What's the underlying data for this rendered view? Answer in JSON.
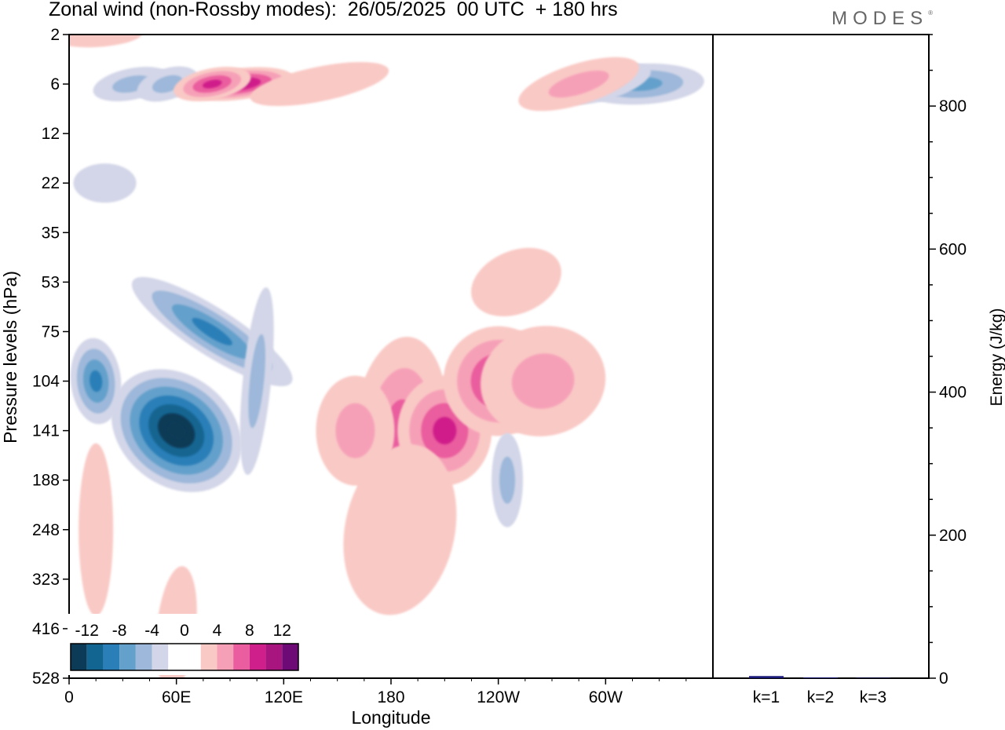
{
  "title": "Zonal wind (non-Rossby modes):  26/05/2025  00 UTC  + 180 hrs",
  "logo": "MODES",
  "colors": {
    "neg": [
      "#0c3b57",
      "#126591",
      "#2a7fb8",
      "#63a0cb",
      "#9db8da",
      "#d3d6e8"
    ],
    "pos": [
      "#f9c9c5",
      "#f6a0b7",
      "#ea5d9e",
      "#cf1f8a",
      "#a8157f",
      "#6e0a76"
    ],
    "bar": "#1a1a7a"
  },
  "chart_data": [
    {
      "type": "heatmap",
      "title": "Zonal wind (non-Rossby modes):  26/05/2025  00 UTC  + 180 hrs",
      "xlabel": "Longitude",
      "ylabel": "Pressure levels (hPa)",
      "x_ticks": [
        "0",
        "60E",
        "120E",
        "180",
        "120W",
        "60W"
      ],
      "y_ticks": [
        "2",
        "6",
        "12",
        "22",
        "35",
        "53",
        "75",
        "104",
        "141",
        "188",
        "248",
        "323",
        "416",
        "528"
      ],
      "colorbar_labels": [
        "-12",
        "-8",
        "-4",
        "0",
        "4",
        "8",
        "12"
      ],
      "levels": [
        -14,
        -12,
        -10,
        -8,
        -6,
        -4,
        -2,
        0,
        2,
        4,
        6,
        8,
        10,
        12,
        14
      ],
      "features": [
        {
          "lon": 60,
          "level": "141",
          "value": -14
        },
        {
          "lon": 15,
          "level": "104",
          "value": -8
        },
        {
          "lon": 80,
          "level": "75",
          "value": -8
        },
        {
          "lon": 105,
          "level": "104",
          "value": -5
        },
        {
          "lon": 35,
          "level": "6",
          "value": -5
        },
        {
          "lon": 55,
          "level": "6",
          "value": -4
        },
        {
          "lon": 320,
          "level": "6",
          "value": -6
        },
        {
          "lon": 300,
          "level": "6",
          "value": -4
        },
        {
          "lon": 95,
          "level": "6",
          "value": 10
        },
        {
          "lon": 80,
          "level": "6",
          "value": 8
        },
        {
          "lon": 140,
          "level": "6",
          "value": 3
        },
        {
          "lon": 285,
          "level": "6",
          "value": 4
        },
        {
          "lon": 15,
          "level": "2",
          "value": 3
        },
        {
          "lon": 185,
          "level": "141",
          "value": 7
        },
        {
          "lon": 210,
          "level": "141",
          "value": 8
        },
        {
          "lon": 240,
          "level": "104",
          "value": 8
        },
        {
          "lon": 265,
          "level": "104",
          "value": 5
        },
        {
          "lon": 160,
          "level": "141",
          "value": 4
        },
        {
          "lon": 185,
          "level": "248",
          "value": 3
        },
        {
          "lon": 245,
          "level": "188",
          "value": -4
        },
        {
          "lon": 15,
          "level": "248",
          "value": 2
        },
        {
          "lon": 60,
          "level": "416",
          "value": 2
        },
        {
          "lon": 250,
          "level": "53",
          "value": 3
        },
        {
          "lon": 20,
          "level": "22",
          "value": -2
        }
      ]
    },
    {
      "type": "bar",
      "categories": [
        "k=1",
        "k=2",
        "k=3"
      ],
      "values": [
        3,
        1,
        0.5
      ],
      "ylabel": "Energy (J/kg)",
      "ylim": [
        0,
        900
      ],
      "y_ticks": [
        0,
        200,
        400,
        600,
        800
      ]
    }
  ]
}
